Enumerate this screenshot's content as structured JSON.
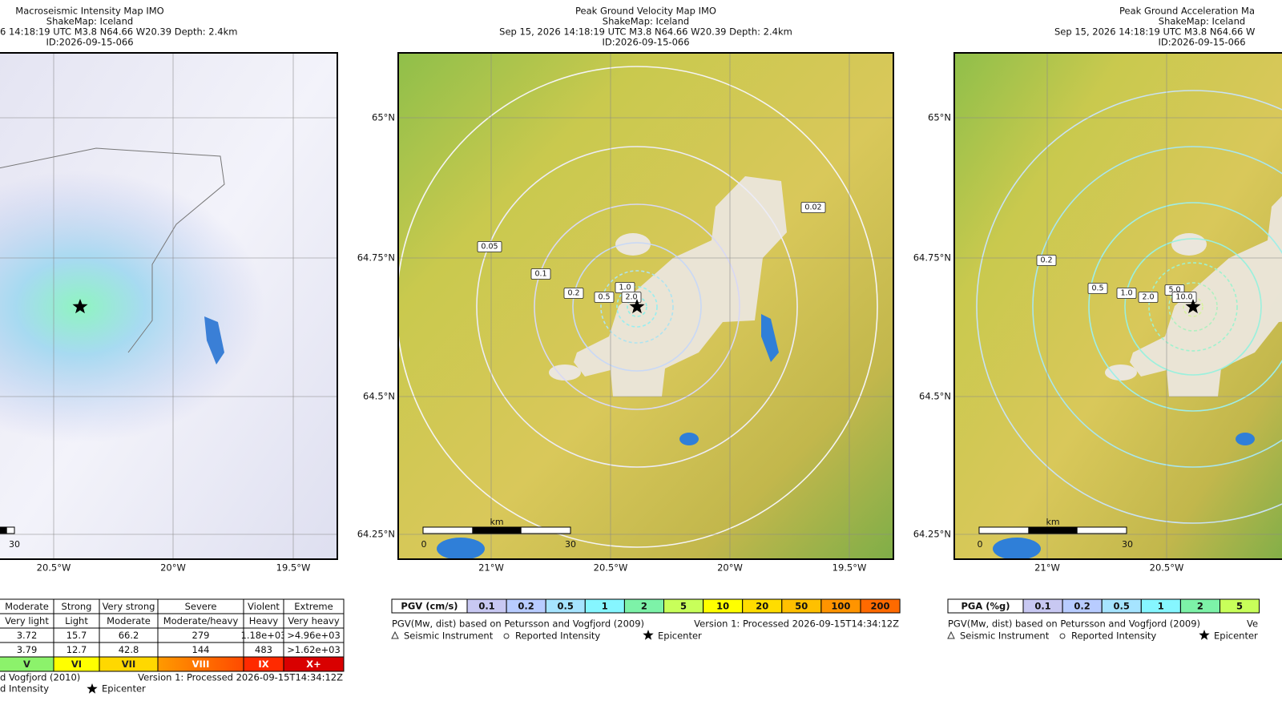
{
  "panels": [
    {
      "title": [
        "Macroseismic Intensity Map IMO",
        "ShakeMap: Iceland",
        "6 14:18:19 UTC M3.8 N64.66 W20.39 Depth: 2.4km",
        "ID:2026-09-15-066"
      ],
      "lat_labels": [],
      "lon_labels": [
        "20.5°W",
        "20°W",
        "19.5°W"
      ],
      "contour_labels": [],
      "scale": [
        "30"
      ],
      "legend": {
        "rows": [
          [
            "Moderate",
            "Strong",
            "Very strong",
            "Severe",
            "Violent",
            "Extreme"
          ],
          [
            "Very light",
            "Light",
            "Moderate",
            "Moderate/heavy",
            "Heavy",
            "Very heavy"
          ],
          [
            "3.72",
            "15.7",
            "66.2",
            "279",
            "1.18e+03",
            ">4.96e+03"
          ],
          [
            "3.79",
            "12.7",
            "42.8",
            "144",
            "483",
            ">1.62e+03"
          ],
          [
            "V",
            "VI",
            "VII",
            "VIII",
            "IX",
            "X+"
          ]
        ]
      },
      "footer": [
        "d Vogfjord (2010)",
        "Version 1: Processed 2026-09-15T14:34:12Z",
        "d Intensity",
        "Epicenter"
      ]
    },
    {
      "title": [
        "Peak Ground Velocity Map IMO",
        "ShakeMap: Iceland",
        "Sep 15, 2026 14:18:19 UTC M3.8 N64.66 W20.39 Depth: 2.4km",
        "ID:2026-09-15-066"
      ],
      "lat_labels": [
        "65°N",
        "64.75°N",
        "64.5°N",
        "64.25°N"
      ],
      "lon_labels": [
        "21°W",
        "20.5°W",
        "20°W",
        "19.5°W"
      ],
      "contour_labels": [
        "0.02",
        "0.05",
        "0.1",
        "0.2",
        "0.5",
        "1.0",
        "2.0"
      ],
      "scale": [
        "km",
        "0",
        "30"
      ],
      "legend": {
        "label": "PGV (cm/s)",
        "bins": [
          "0.1",
          "0.2",
          "0.5",
          "1",
          "2",
          "5",
          "10",
          "20",
          "50",
          "100",
          "200"
        ]
      },
      "footer": [
        "PGV(Mw, dist) based on Petursson and Vogfjord (2009)",
        "Version 1: Processed 2026-09-15T14:34:12Z",
        "Seismic Instrument",
        "Reported Intensity",
        "Epicenter"
      ]
    },
    {
      "title": [
        "Peak Ground Acceleration Ma",
        "ShakeMap: Iceland",
        "Sep 15, 2026 14:18:19 UTC M3.8 N64.66 W",
        "ID:2026-09-15-066"
      ],
      "lat_labels": [
        "65°N",
        "64.75°N",
        "64.5°N",
        "64.25°N"
      ],
      "lon_labels": [
        "21°W",
        "20.5°W"
      ],
      "contour_labels": [
        "0.2",
        "0.5",
        "1.0",
        "2.0",
        "5.0",
        "10.0"
      ],
      "scale": [
        "km",
        "0",
        "30"
      ],
      "legend": {
        "label": "PGA (%g)",
        "bins": [
          "0.1",
          "0.2",
          "0.5",
          "1",
          "2",
          "5"
        ]
      },
      "footer": [
        "PGV(Mw, dist) based on Petursson and Vogfjord (2009)",
        "Ve",
        "Seismic Instrument",
        "Reported Intensity",
        "Epicenter"
      ]
    }
  ]
}
